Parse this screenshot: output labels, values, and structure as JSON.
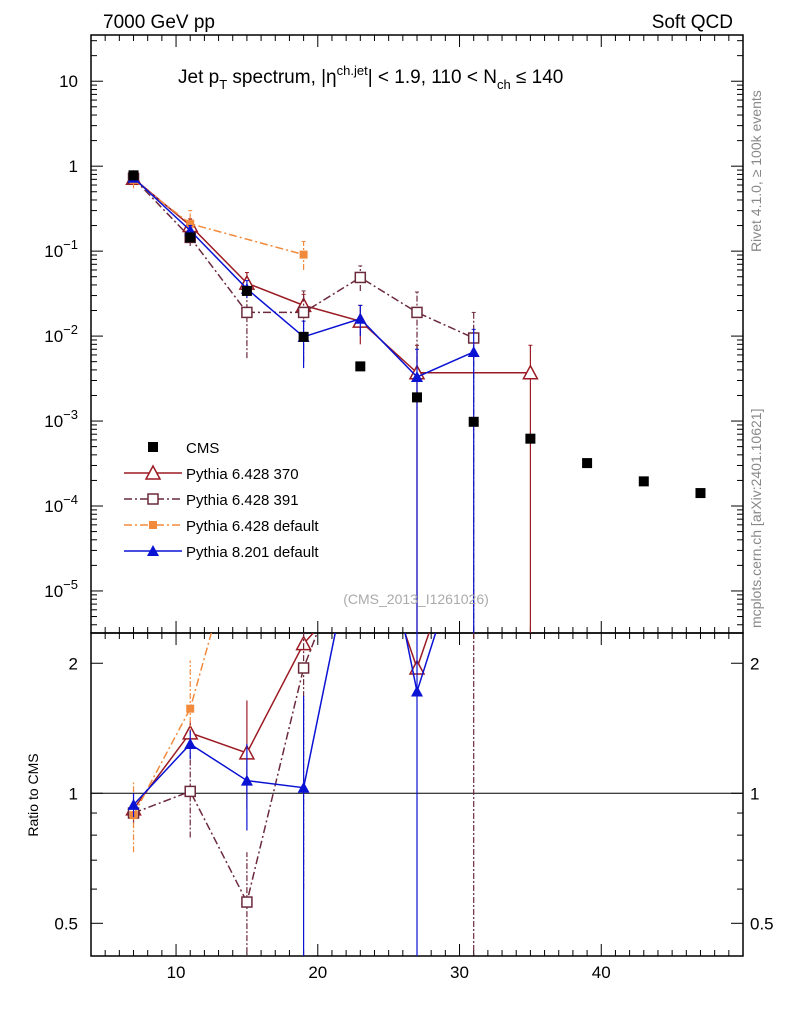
{
  "header": {
    "left": "7000 GeV pp",
    "right": "Soft QCD"
  },
  "title": {
    "pre": "Jet p",
    "sub_T": "T",
    "mid": " spectrum, |η",
    "sup_chjet": "ch.jet",
    "post1": "| < 1.9, 110 < N",
    "sub_ch": "ch",
    "post2": " ≤ 140"
  },
  "side_text": {
    "rivet": "Rivet 4.1.0, ≥ 100k events",
    "mcplots": "mcplots.cern.ch [arXiv:2401.10621]"
  },
  "analysis_label": "(CMS_2013_I1261026)",
  "ratio_ylabel": "Ratio to CMS",
  "main_y_ticks": [
    {
      "value": 10,
      "label": "10"
    },
    {
      "value": 1,
      "label": "1"
    },
    {
      "value": 0.1,
      "base": "10",
      "exp": "−1"
    },
    {
      "value": 0.01,
      "base": "10",
      "exp": "−2"
    },
    {
      "value": 0.001,
      "base": "10",
      "exp": "−3"
    },
    {
      "value": 0.0001,
      "base": "10",
      "exp": "−4"
    },
    {
      "value": 1e-05,
      "base": "10",
      "exp": "−5"
    }
  ],
  "legend": [
    {
      "label": "CMS"
    },
    {
      "label": "Pythia 6.428 370"
    },
    {
      "label": "Pythia 6.428 391"
    },
    {
      "label": "Pythia 6.428 default"
    },
    {
      "label": "Pythia 8.201 default"
    }
  ],
  "chart_data": {
    "type": "scatter",
    "title": "Jet pT spectrum, |η ch.jet| < 1.9, 110 < Nch ≤ 140",
    "xlim": [
      4,
      50
    ],
    "ylim": [
      3.2e-06,
      35
    ],
    "yscale": "log",
    "x_ticks": [
      10,
      20,
      30,
      40
    ],
    "ratio": {
      "ylabel": "Ratio to CMS",
      "ylim": [
        0.42,
        2.35
      ],
      "yscale": "log",
      "y_ticks": [
        {
          "value": 2,
          "label": "2"
        },
        {
          "value": 1,
          "label": "1"
        },
        {
          "value": 0.5,
          "label": "0.5"
        }
      ]
    },
    "series": [
      {
        "name": "CMS",
        "color": "#000000",
        "marker": "square-filled",
        "line": "none",
        "points": [
          {
            "x": 7,
            "y": 0.78
          },
          {
            "x": 11,
            "y": 0.145
          },
          {
            "x": 15,
            "y": 0.034
          },
          {
            "x": 19,
            "y": 0.0098
          },
          {
            "x": 23,
            "y": 0.0044
          },
          {
            "x": 27,
            "y": 0.0019
          },
          {
            "x": 31,
            "y": 0.00098
          },
          {
            "x": 35,
            "y": 0.00062
          },
          {
            "x": 39,
            "y": 0.00032
          },
          {
            "x": 43,
            "y": 0.000195
          },
          {
            "x": 47,
            "y": 0.000142
          }
        ]
      },
      {
        "name": "Pythia 6.428 370",
        "color": "#9b1b24",
        "marker": "triangle-open",
        "line": "solid",
        "points": [
          {
            "x": 7,
            "y": 0.72,
            "lo": 0.64,
            "hi": 0.8
          },
          {
            "x": 11,
            "y": 0.2,
            "lo": 0.165,
            "hi": 0.24
          },
          {
            "x": 15,
            "y": 0.042,
            "lo": 0.03,
            "hi": 0.056
          },
          {
            "x": 19,
            "y": 0.023,
            "lo": 0.016,
            "hi": 0.031
          },
          {
            "x": 23,
            "y": 0.015,
            "lo": 0.008,
            "hi": 0.023
          },
          {
            "x": 27,
            "y": 0.0037,
            "lo": 1e-09,
            "hi": 0.0078
          },
          {
            "x": 35,
            "y": 0.0037,
            "lo": 1e-09,
            "hi": 0.0078
          }
        ],
        "ratio": [
          {
            "x": 7,
            "r": 0.92
          },
          {
            "x": 11,
            "r": 1.38,
            "lo": 1.3,
            "hi": 1.47
          },
          {
            "x": 15,
            "r": 1.24,
            "lo": 0.92,
            "hi": 1.64
          },
          {
            "x": 19,
            "r": 2.22
          },
          {
            "x": 22.2,
            "r": 2.9
          },
          {
            "x": 25.2,
            "r": 2.9
          },
          {
            "x": 27,
            "r": 1.95
          },
          {
            "x": 28.8,
            "r": 2.9
          }
        ]
      },
      {
        "name": "Pythia 6.428 391",
        "color": "#6b2a3c",
        "marker": "square-open",
        "line": "dashdot",
        "points": [
          {
            "x": 7,
            "y": 0.72,
            "lo": 0.64,
            "hi": 0.8
          },
          {
            "x": 11,
            "y": 0.145,
            "lo": 0.115,
            "hi": 0.18
          },
          {
            "x": 15,
            "y": 0.019,
            "lo": 0.0055,
            "hi": 0.034
          },
          {
            "x": 19,
            "y": 0.019,
            "lo": 0.005,
            "hi": 0.034
          },
          {
            "x": 23,
            "y": 0.049,
            "lo": 0.034,
            "hi": 0.067
          },
          {
            "x": 27,
            "y": 0.019,
            "lo": 0.005,
            "hi": 0.033
          },
          {
            "x": 31,
            "y": 0.0095,
            "lo": 1e-09,
            "hi": 0.019
          }
        ],
        "ratio": [
          {
            "x": 7,
            "r": 0.9,
            "lo": 0.85,
            "hi": 0.96
          },
          {
            "x": 11,
            "r": 1.01,
            "lo": 0.79,
            "hi": 1.24
          },
          {
            "x": 15,
            "r": 0.56,
            "lo": 0.4,
            "hi": 0.73
          },
          {
            "x": 19,
            "r": 1.95,
            "lo": 0.6,
            "hi": 2.5
          },
          {
            "x": 21.2,
            "r": 3.0
          }
        ]
      },
      {
        "name": "Pythia 6.428 default",
        "color": "#f28a3c",
        "marker": "square-filled",
        "line": "dashdot",
        "points": [
          {
            "x": 7,
            "y": 0.69,
            "lo": 0.55,
            "hi": 0.83
          },
          {
            "x": 11,
            "y": 0.21,
            "lo": 0.17,
            "hi": 0.3
          },
          {
            "x": 19,
            "y": 0.091,
            "lo": 0.06,
            "hi": 0.13
          }
        ],
        "ratio": [
          {
            "x": 7,
            "r": 0.89,
            "lo": 0.73,
            "hi": 1.06
          },
          {
            "x": 11,
            "r": 1.57,
            "lo": 1.28,
            "hi": 2.03
          },
          {
            "x": 13,
            "r": 2.7
          }
        ]
      },
      {
        "name": "Pythia 8.201 default",
        "color": "#0a12d4",
        "marker": "triangle-filled",
        "line": "solid",
        "points": [
          {
            "x": 7,
            "y": 0.73,
            "lo": 0.66,
            "hi": 0.8
          },
          {
            "x": 11,
            "y": 0.175,
            "lo": 0.15,
            "hi": 0.2
          },
          {
            "x": 15,
            "y": 0.036,
            "lo": 0.028,
            "hi": 0.045
          },
          {
            "x": 19,
            "y": 0.0098,
            "lo": 0.0042,
            "hi": 0.015
          },
          {
            "x": 23,
            "y": 0.016,
            "lo": 0.01,
            "hi": 0.023
          },
          {
            "x": 27,
            "y": 0.0033,
            "lo": 1e-09,
            "hi": 0.007
          },
          {
            "x": 31,
            "y": 0.0065,
            "lo": 1e-09,
            "hi": 0.012
          }
        ],
        "ratio": [
          {
            "x": 7,
            "r": 0.94,
            "lo": 0.88,
            "hi": 1.0
          },
          {
            "x": 11,
            "r": 1.3,
            "lo": 1.2,
            "hi": 1.4
          },
          {
            "x": 15,
            "r": 1.07,
            "lo": 0.82,
            "hi": 1.3
          },
          {
            "x": 19,
            "r": 1.03,
            "lo": 0.38,
            "hi": 1.68
          },
          {
            "x": 21.8,
            "r": 2.9
          },
          {
            "x": 25.6,
            "r": 2.9
          },
          {
            "x": 27,
            "r": 1.72
          },
          {
            "x": 29.2,
            "r": 2.9
          }
        ]
      }
    ]
  }
}
